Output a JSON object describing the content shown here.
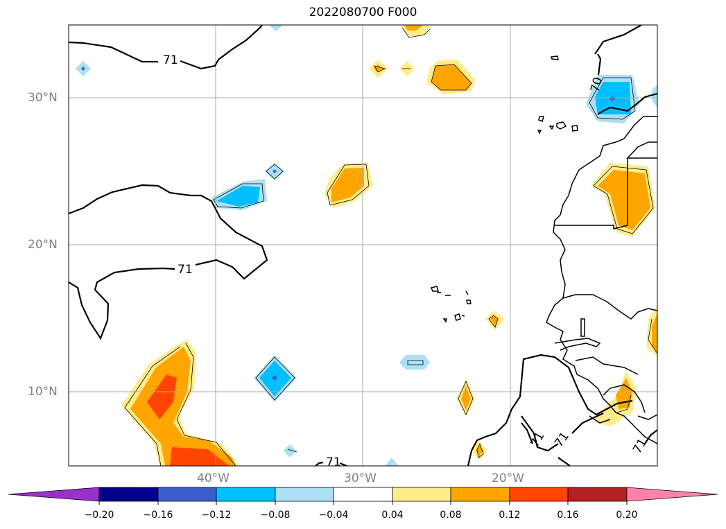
{
  "title": "2022080700 F000",
  "lat_labels": [
    "30°N",
    "20°N",
    "10°N"
  ],
  "lon_labels": [
    "40°W",
    "30°W",
    "20°W"
  ],
  "contour_labels": [
    "71",
    "71",
    "70",
    "71",
    "71",
    "71",
    "71"
  ],
  "colorbar": {
    "ticks": [
      "−0.20",
      "−0.16",
      "−0.12",
      "−0.08",
      "−0.04",
      "0.04",
      "0.08",
      "0.12",
      "0.16",
      "0.20"
    ],
    "colors": [
      "#9932CC",
      "#00008B",
      "#3A5FCD",
      "#00BFFF",
      "#ADDFF5",
      "#FFFFFF",
      "#FFEC8B",
      "#FFA500",
      "#FF4500",
      "#B22222",
      "#FF82AB"
    ]
  },
  "map": {
    "lat_range": [
      5,
      35
    ],
    "lon_range": [
      -50,
      -10
    ],
    "gridlines": true
  }
}
